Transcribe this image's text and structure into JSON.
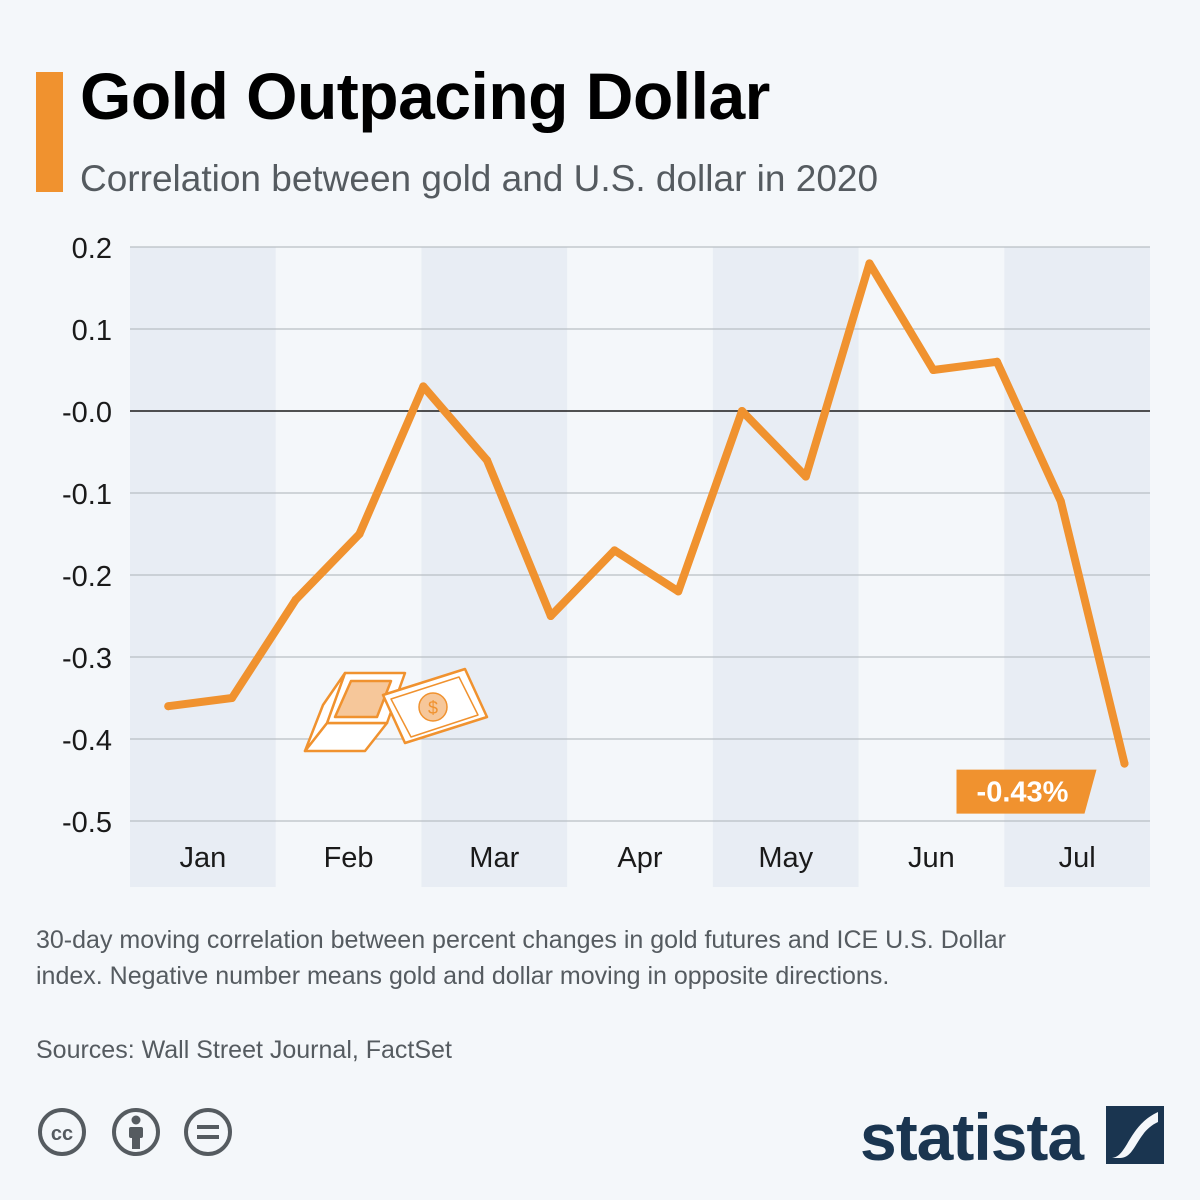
{
  "title": "Gold Outpacing Dollar",
  "subtitle": "Correlation between gold and U.S. dollar in 2020",
  "footnote": "30-day moving correlation between percent changes in gold futures and ICE U.S. Dollar index. Negative number means gold and dollar moving in opposite directions.",
  "source": "Sources: Wall Street Journal, FactSet",
  "brand": "statista",
  "colors": {
    "accent": "#f0922f",
    "band": "#e8edf4",
    "text": "#555b60"
  },
  "icons": [
    "gold-bar-and-dollar-icon",
    "cc-icon",
    "attribution-icon",
    "no-derivatives-icon",
    "statista-logo-icon"
  ],
  "chart_data": {
    "type": "line",
    "title": "Gold Outpacing Dollar",
    "subtitle": "Correlation between gold and U.S. dollar in 2020",
    "xlabel": "",
    "ylabel": "",
    "ylim": [
      -0.5,
      0.2
    ],
    "yticks": [
      0.2,
      0.1,
      0.0,
      -0.1,
      -0.2,
      -0.3,
      -0.4,
      -0.5
    ],
    "ytick_labels": [
      "0.2",
      "0.1",
      "-0.0",
      "-0.1",
      "-0.2",
      "-0.3",
      "-0.4",
      "-0.5"
    ],
    "months": [
      "Jan",
      "Feb",
      "Mar",
      "Apr",
      "May",
      "Jun",
      "Jul"
    ],
    "x_range": [
      0,
      16
    ],
    "series": [
      {
        "name": "Correlation",
        "x": [
          0.6,
          1.6,
          2.6,
          3.6,
          4.6,
          5.6,
          6.6,
          7.6,
          8.6,
          9.6,
          10.6,
          11.6,
          12.6,
          13.6,
          14.6,
          15.6
        ],
        "values": [
          -0.36,
          -0.35,
          -0.23,
          -0.15,
          0.03,
          -0.06,
          -0.25,
          -0.17,
          -0.22,
          0.0,
          -0.08,
          0.18,
          0.05,
          0.06,
          -0.11,
          -0.43
        ]
      }
    ],
    "annotation": {
      "label": "-0.43%",
      "series_index": 0,
      "point_index": 15
    },
    "grid": true
  }
}
